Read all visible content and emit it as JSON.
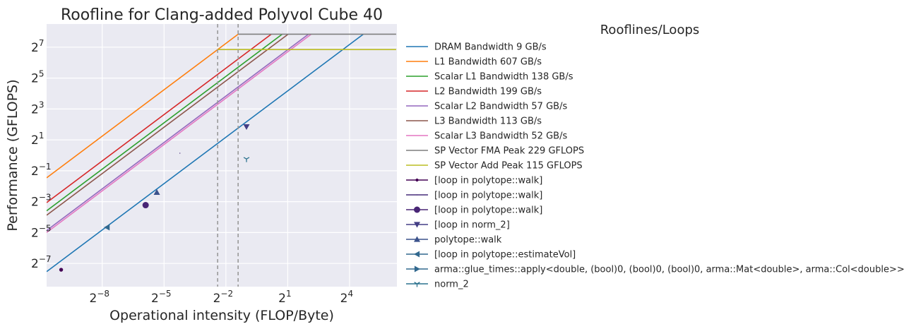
{
  "chart_data": {
    "type": "line",
    "title": "Roofline for Clang-added Polyvol Cube 40",
    "xlabel": "Operational intensity (FLOP/Byte)",
    "ylabel": "Performance (GFLOPS)",
    "xscale": "log2",
    "yscale": "log2",
    "xlim_log2": [
      -10.7,
      6.3
    ],
    "ylim_log2": [
      -8.5,
      8.5
    ],
    "x_ticks": [
      {
        "base": "2",
        "exp": "−8",
        "value": -8
      },
      {
        "base": "2",
        "exp": "−5",
        "value": -5
      },
      {
        "base": "2",
        "exp": "−2",
        "value": -2
      },
      {
        "base": "2",
        "exp": "1",
        "value": 1
      },
      {
        "base": "2",
        "exp": "4",
        "value": 4
      }
    ],
    "y_ticks": [
      {
        "base": "2",
        "exp": "−7",
        "value": -7
      },
      {
        "base": "2",
        "exp": "−5",
        "value": -5
      },
      {
        "base": "2",
        "exp": "−3",
        "value": -3
      },
      {
        "base": "2",
        "exp": "−1",
        "value": -1
      },
      {
        "base": "2",
        "exp": "1",
        "value": 1
      },
      {
        "base": "2",
        "exp": "3",
        "value": 3
      },
      {
        "base": "2",
        "exp": "5",
        "value": 5
      },
      {
        "base": "2",
        "exp": "7",
        "value": 7
      }
    ],
    "grid": true,
    "legend_title": "Rooflines/Loops",
    "legend_position": "right",
    "x_end": 76.8,
    "bandwidths": [
      {
        "name": "DRAM Bandwidth 9 GB/s",
        "value": 9,
        "color": "#1f77b4",
        "roof": 229
      },
      {
        "name": "L1 Bandwidth 607 GB/s",
        "value": 607,
        "color": "#ff7f0e",
        "roof": 229
      },
      {
        "name": "Scalar L1 Bandwidth 138 GB/s",
        "value": 138,
        "color": "#2ca02c",
        "roof": 229
      },
      {
        "name": "L2 Bandwidth 199 GB/s",
        "value": 199,
        "color": "#d62728",
        "roof": 229
      },
      {
        "name": "Scalar L2 Bandwidth 57 GB/s",
        "value": 57,
        "color": "#9467bd",
        "roof": 229
      },
      {
        "name": "L3 Bandwidth 113 GB/s",
        "value": 113,
        "color": "#8c564b",
        "roof": 229
      },
      {
        "name": "Scalar L3 Bandwidth 52 GB/s",
        "value": 52,
        "color": "#e377c2",
        "roof": 229
      }
    ],
    "peaks": [
      {
        "name": "SP Vector FMA Peak 229 GFLOPS",
        "value": 229,
        "color": "#7f7f7f",
        "x_start": 0.3773
      },
      {
        "name": "SP Vector Add Peak 115 GFLOPS",
        "value": 115,
        "color": "#bcbd22",
        "x_start": 0.1895
      }
    ],
    "ridge_lines_x": [
      0.1895,
      0.3773
    ],
    "ridge_line_color": "#999999",
    "loops": [
      {
        "name": "[loop in polytope::walk]",
        "marker": "point",
        "color": "#440154",
        "x": 0.00098,
        "y": 0.0059
      },
      {
        "name": "[loop in polytope::walk]",
        "marker": "pixel",
        "color": "#472c7a",
        "x": 0.0532,
        "y": 1.1
      },
      {
        "name": "[loop in polytope::walk]",
        "marker": "circle",
        "color": "#482575",
        "x": 0.0168,
        "y": 0.107
      },
      {
        "name": "[loop in norm_2]",
        "marker": "triangle_down",
        "color": "#433e85",
        "x": 0.5,
        "y": 3.6
      },
      {
        "name": "polytope::walk",
        "marker": "triangle_up",
        "color": "#3b528b",
        "x": 0.0245,
        "y": 0.19
      },
      {
        "name": "[loop in polytope::estimateVol]",
        "marker": "triangle_left",
        "color": "#31688e",
        "x": 0.0046,
        "y": 0.0395
      },
      {
        "name": "arma::glue_times::apply<double, (bool)0, (bool)0, (bool)0, arma::Mat<double>, arma::Col<double>>.isra.0",
        "marker": "triangle_right",
        "color": "#31688e",
        "x": null,
        "y": null
      },
      {
        "name": "norm_2",
        "marker": "tri_down",
        "color": "#2c728e",
        "x": 0.5,
        "y": 0.85
      }
    ]
  }
}
